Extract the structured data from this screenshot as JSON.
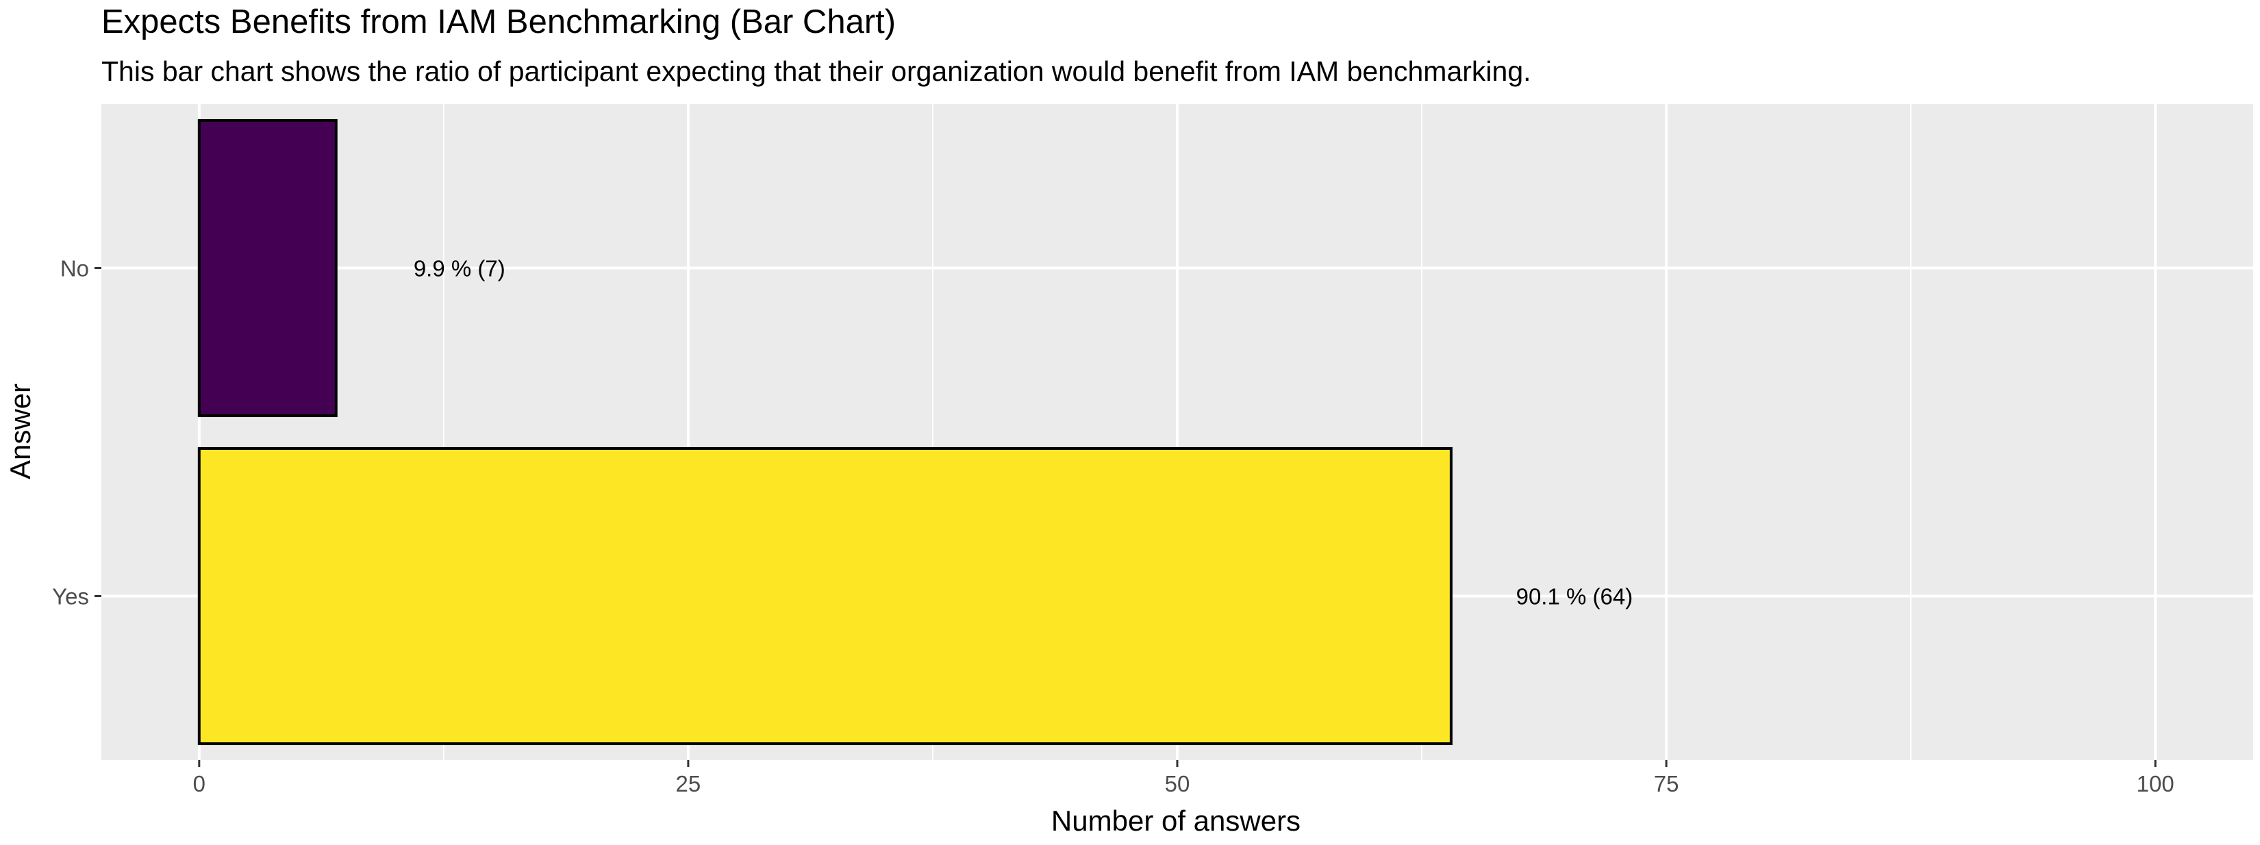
{
  "chart_data": {
    "type": "bar",
    "orientation": "horizontal",
    "title": "Expects Benefits from IAM Benchmarking (Bar Chart)",
    "subtitle": "This bar chart shows the ratio of participant expecting that their organization would benefit from IAM benchmarking.",
    "xlabel": "Number of answers",
    "ylabel": "Answer",
    "xlim": [
      -5,
      105
    ],
    "xticks": [
      0,
      25,
      50,
      75,
      100
    ],
    "xtick_labels": [
      "0",
      "25",
      "50",
      "75",
      "100"
    ],
    "categories": [
      "No",
      "Yes"
    ],
    "values": [
      7,
      64
    ],
    "bar_labels": [
      "9.9 % (7)",
      "90.1 % (64)"
    ],
    "colors": [
      "#440154",
      "#FDE725"
    ],
    "panel_background": "#EBEBEB",
    "grid": true,
    "legend": "none"
  }
}
